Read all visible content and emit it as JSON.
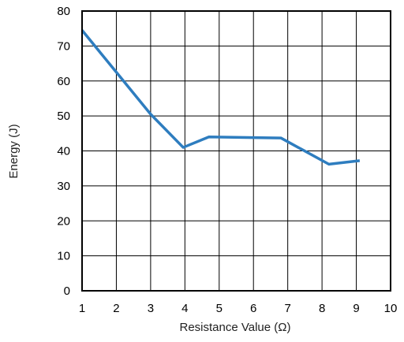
{
  "chart_data": {
    "type": "line",
    "title": "",
    "xlabel": "Resistance Value (Ω)",
    "ylabel": "Energy (J)",
    "xlim": [
      1,
      10
    ],
    "ylim": [
      0,
      80
    ],
    "x_ticks": [
      1,
      2,
      3,
      4,
      5,
      6,
      7,
      8,
      9,
      10
    ],
    "y_ticks": [
      0,
      10,
      20,
      30,
      40,
      50,
      60,
      70,
      80
    ],
    "grid": true,
    "series": [
      {
        "color": "#2e7dbf",
        "x": [
          1,
          2,
          3,
          3.95,
          4.7,
          6,
          6.8,
          8.2,
          9.1
        ],
        "y": [
          74.5,
          62.5,
          50.5,
          41,
          44,
          43.8,
          43.7,
          36.2,
          37.2
        ]
      }
    ]
  }
}
